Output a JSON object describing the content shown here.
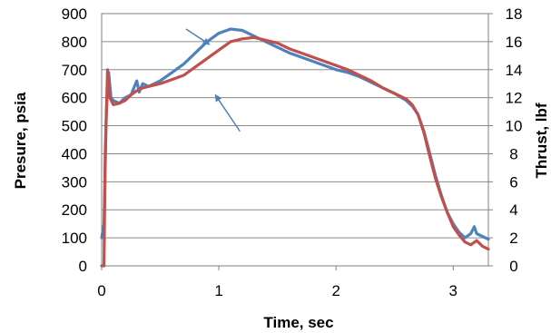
{
  "chart_data": {
    "type": "line",
    "title": "",
    "xlabel": "Time, sec",
    "ylabel_left": "Presure, psia",
    "ylabel_right": "Thrust, lbf",
    "xlim": [
      0,
      3.3
    ],
    "ylim_left": [
      0,
      900
    ],
    "ylim_right": [
      0,
      18
    ],
    "grid": true,
    "legend": "none",
    "x_ticks": [
      "0",
      "1",
      "2",
      "3"
    ],
    "x_tick_values": [
      0,
      1,
      2,
      3
    ],
    "y_left_ticks": [
      "0",
      "100",
      "200",
      "300",
      "400",
      "500",
      "600",
      "700",
      "800",
      "900"
    ],
    "y_left_tick_values": [
      0,
      100,
      200,
      300,
      400,
      500,
      600,
      700,
      800,
      900
    ],
    "y_right_ticks": [
      "0",
      "2",
      "4",
      "6",
      "8",
      "10",
      "12",
      "14",
      "16",
      "18"
    ],
    "y_right_tick_values": [
      0,
      2,
      4,
      6,
      8,
      10,
      12,
      14,
      16,
      18
    ],
    "series": [
      {
        "axis": "left",
        "color": "#4f81bd",
        "x": [
          0.0,
          0.02,
          0.04,
          0.06,
          0.08,
          0.1,
          0.15,
          0.2,
          0.25,
          0.28,
          0.3,
          0.32,
          0.35,
          0.4,
          0.5,
          0.6,
          0.7,
          0.8,
          0.9,
          1.0,
          1.1,
          1.2,
          1.3,
          1.4,
          1.5,
          1.6,
          1.7,
          1.8,
          1.9,
          2.0,
          2.1,
          2.2,
          2.3,
          2.4,
          2.5,
          2.6,
          2.65,
          2.7,
          2.75,
          2.8,
          2.85,
          2.9,
          2.95,
          3.0,
          3.05,
          3.1,
          3.15,
          3.18,
          3.2,
          3.25,
          3.3
        ],
        "values": [
          100,
          150,
          550,
          690,
          600,
          590,
          580,
          600,
          610,
          640,
          660,
          620,
          650,
          640,
          660,
          690,
          720,
          760,
          800,
          830,
          845,
          840,
          820,
          800,
          780,
          760,
          745,
          730,
          715,
          700,
          690,
          675,
          655,
          635,
          615,
          590,
          570,
          540,
          480,
          400,
          320,
          250,
          190,
          150,
          120,
          100,
          115,
          140,
          115,
          105,
          95
        ]
      },
      {
        "axis": "right",
        "color": "#c0504d",
        "x": [
          0.0,
          0.02,
          0.03,
          0.05,
          0.07,
          0.1,
          0.15,
          0.2,
          0.25,
          0.3,
          0.35,
          0.4,
          0.5,
          0.6,
          0.7,
          0.8,
          0.9,
          1.0,
          1.1,
          1.2,
          1.3,
          1.4,
          1.5,
          1.6,
          1.7,
          1.8,
          1.9,
          2.0,
          2.1,
          2.2,
          2.3,
          2.4,
          2.5,
          2.6,
          2.65,
          2.7,
          2.75,
          2.8,
          2.85,
          2.9,
          2.95,
          3.0,
          3.05,
          3.1,
          3.15,
          3.2,
          3.25,
          3.3
        ],
        "values": [
          0,
          0,
          8,
          14,
          12,
          11.5,
          11.6,
          11.8,
          12.2,
          12.5,
          12.7,
          12.8,
          13.0,
          13.3,
          13.6,
          14.2,
          14.8,
          15.4,
          16.0,
          16.2,
          16.3,
          16.1,
          15.9,
          15.5,
          15.2,
          14.9,
          14.6,
          14.3,
          14.0,
          13.6,
          13.2,
          12.7,
          12.3,
          11.9,
          11.5,
          10.8,
          9.5,
          7.8,
          6.2,
          4.9,
          3.8,
          2.8,
          2.2,
          1.7,
          1.5,
          1.8,
          1.4,
          1.2
        ]
      }
    ],
    "annotations": [
      {
        "type": "arrow",
        "from": [
          0.72,
          845
        ],
        "to": [
          0.92,
          790
        ]
      },
      {
        "type": "arrow",
        "from": [
          1.18,
          480
        ],
        "to": [
          0.97,
          610
        ]
      }
    ]
  }
}
